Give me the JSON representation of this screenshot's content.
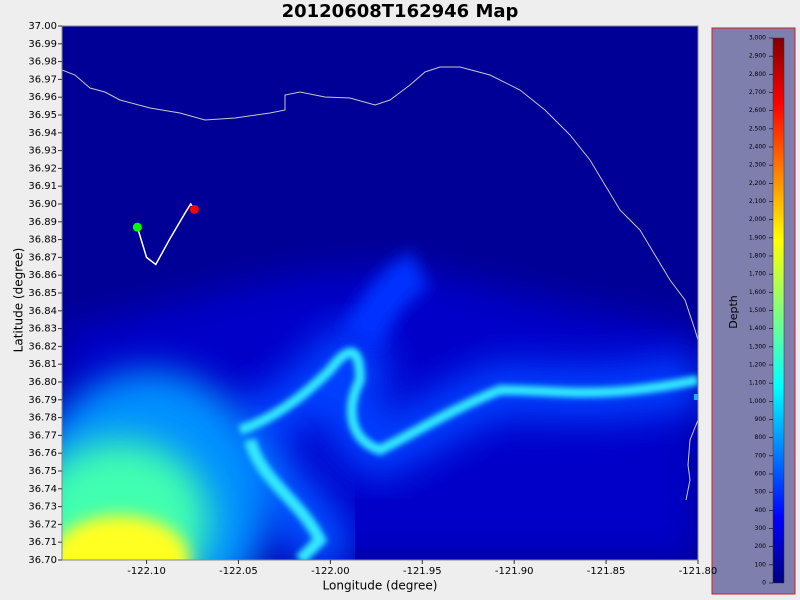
{
  "chart_data": {
    "type": "map",
    "title": "20120608T162946 Map",
    "x_label": "Longitude (degree)",
    "y_label": "Latitude (degree)",
    "xlim": [
      -122.146,
      -121.8
    ],
    "ylim": [
      36.7,
      37.0
    ],
    "xticks": [
      {
        "value": -122.1,
        "label": "-122.10"
      },
      {
        "value": -122.05,
        "label": "-122.05"
      },
      {
        "value": -122.0,
        "label": "-122.00"
      },
      {
        "value": -121.95,
        "label": "-121.95"
      },
      {
        "value": -121.9,
        "label": "-121.90"
      },
      {
        "value": -121.85,
        "label": "-121.85"
      },
      {
        "value": -121.8,
        "label": "-121.80"
      }
    ],
    "yticks": [
      {
        "value": 37.0,
        "label": "37.00"
      },
      {
        "value": 36.99,
        "label": "36.99"
      },
      {
        "value": 36.98,
        "label": "36.98"
      },
      {
        "value": 36.97,
        "label": "36.97"
      },
      {
        "value": 36.96,
        "label": "36.96"
      },
      {
        "value": 36.95,
        "label": "36.95"
      },
      {
        "value": 36.94,
        "label": "36.94"
      },
      {
        "value": 36.93,
        "label": "36.93"
      },
      {
        "value": 36.92,
        "label": "36.92"
      },
      {
        "value": 36.91,
        "label": "36.91"
      },
      {
        "value": 36.9,
        "label": "36.90"
      },
      {
        "value": 36.89,
        "label": "36.89"
      },
      {
        "value": 36.88,
        "label": "36.88"
      },
      {
        "value": 36.87,
        "label": "36.87"
      },
      {
        "value": 36.86,
        "label": "36.86"
      },
      {
        "value": 36.85,
        "label": "36.85"
      },
      {
        "value": 36.84,
        "label": "36.84"
      },
      {
        "value": 36.83,
        "label": "36.83"
      },
      {
        "value": 36.82,
        "label": "36.82"
      },
      {
        "value": 36.81,
        "label": "36.81"
      },
      {
        "value": 36.8,
        "label": "36.80"
      },
      {
        "value": 36.79,
        "label": "36.79"
      },
      {
        "value": 36.78,
        "label": "36.78"
      },
      {
        "value": 36.77,
        "label": "36.77"
      },
      {
        "value": 36.76,
        "label": "36.76"
      },
      {
        "value": 36.75,
        "label": "36.75"
      },
      {
        "value": 36.74,
        "label": "36.74"
      },
      {
        "value": 36.73,
        "label": "36.73"
      },
      {
        "value": 36.72,
        "label": "36.72"
      },
      {
        "value": 36.71,
        "label": "36.71"
      },
      {
        "value": 36.7,
        "label": "36.70"
      }
    ],
    "track": {
      "color": "#ffffff",
      "x": [
        -122.105,
        -122.1,
        -122.095,
        -122.087,
        -122.079,
        -122.076,
        -122.074
      ],
      "y": [
        36.887,
        36.87,
        36.866,
        36.881,
        36.895,
        36.9,
        36.897
      ]
    },
    "start": {
      "color": "#00ff00",
      "x": -122.105,
      "y": 36.887
    },
    "end": {
      "color": "#ff0000",
      "x": -122.074,
      "y": 36.897
    },
    "colorbar": {
      "label": "Depth",
      "lim": [
        0,
        3000
      ],
      "ticks": [
        0,
        100,
        200,
        300,
        400,
        500,
        600,
        700,
        800,
        900,
        {
          "value": 1000,
          "label": "1,000"
        },
        {
          "value": 1100,
          "label": "1,100"
        },
        {
          "value": 1200,
          "label": "1,200"
        },
        {
          "value": 1300,
          "label": "1,300"
        },
        {
          "value": 1400,
          "label": "1,400"
        },
        {
          "value": 1500,
          "label": "1,500"
        },
        {
          "value": 1600,
          "label": "1,600"
        },
        {
          "value": 1700,
          "label": "1,700"
        },
        {
          "value": 1800,
          "label": "1,800"
        },
        {
          "value": 1900,
          "label": "1,900"
        },
        {
          "value": 2000,
          "label": "2,000"
        },
        {
          "value": 2100,
          "label": "2,100"
        },
        {
          "value": 2200,
          "label": "2,200"
        },
        {
          "value": 2300,
          "label": "2,300"
        },
        {
          "value": 2400,
          "label": "2,400"
        },
        {
          "value": 2500,
          "label": "2,500"
        },
        {
          "value": 2600,
          "label": "2,600"
        },
        {
          "value": 2700,
          "label": "2,700"
        },
        {
          "value": 2800,
          "label": "2,800"
        },
        {
          "value": 2900,
          "label": "2,900"
        },
        {
          "value": 3000,
          "label": "3,000"
        }
      ]
    }
  }
}
